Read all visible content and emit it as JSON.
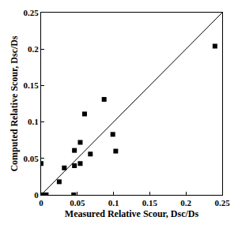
{
  "chart_data": {
    "type": "scatter",
    "x_label": "Measured Relative Scour, Dsc/Ds",
    "y_label": "Computed Relative Scour, Dsc/Ds",
    "xlim": [
      0,
      0.25
    ],
    "ylim": [
      0,
      0.25
    ],
    "xticks": [
      0,
      0.05,
      0.1,
      0.15,
      0.2,
      0.25
    ],
    "yticks": [
      0,
      0.05,
      0.1,
      0.15,
      0.2,
      0.25
    ],
    "grid": false,
    "series": [
      {
        "type": "scatter",
        "marker": "square",
        "color": "#000000",
        "x": [
          0,
          0.002,
          0.007,
          0.025,
          0.032,
          0.045,
          0.046,
          0.046,
          0.054,
          0.054,
          0.06,
          0.068,
          0.087,
          0.099,
          0.103,
          0.24
        ],
        "values": [
          0.043,
          0,
          0,
          0.018,
          0.037,
          0,
          0.04,
          0.061,
          0.072,
          0.043,
          0.111,
          0.056,
          0.131,
          0.083,
          0.06,
          0.204
        ]
      },
      {
        "type": "line",
        "line_style": "solid",
        "color": "#000000",
        "x": [
          0,
          0.25
        ],
        "values": [
          0,
          0.25
        ]
      }
    ]
  }
}
